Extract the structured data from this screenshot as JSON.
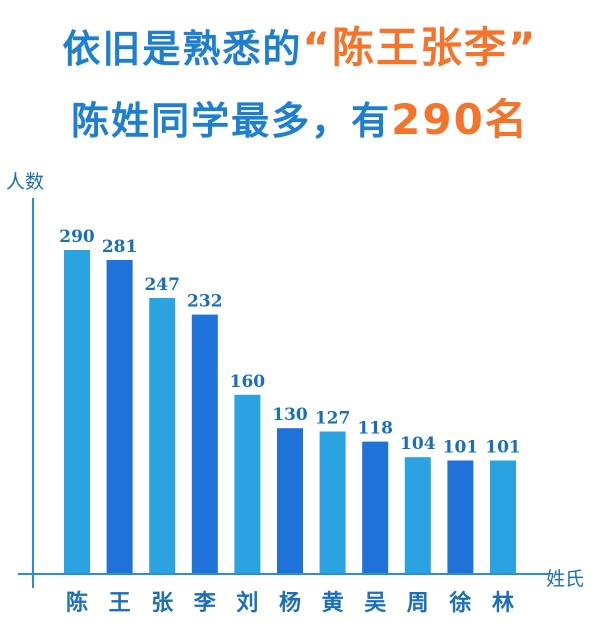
{
  "headline": {
    "line1_prefix": "依旧是熟悉的",
    "line1_accent": "“陈王张李”",
    "line2_prefix": "陈姓同学最多，有",
    "line2_accent": "290名"
  },
  "colors": {
    "headline": "#1e7fd0",
    "accent": "#f4742b",
    "bar_a": "#2aa3e0",
    "bar_b": "#1f72d8",
    "axis": "#2b8fd0"
  },
  "chart_data": {
    "type": "bar",
    "categories": [
      "陈",
      "王",
      "张",
      "李",
      "刘",
      "杨",
      "黄",
      "吴",
      "周",
      "徐",
      "林"
    ],
    "values": [
      290,
      281,
      247,
      232,
      160,
      130,
      127,
      118,
      104,
      101,
      101
    ],
    "title": "",
    "xlabel": "姓氏",
    "ylabel": "人数",
    "ylim": [
      0,
      320
    ],
    "grid": false,
    "data_labels": true
  }
}
